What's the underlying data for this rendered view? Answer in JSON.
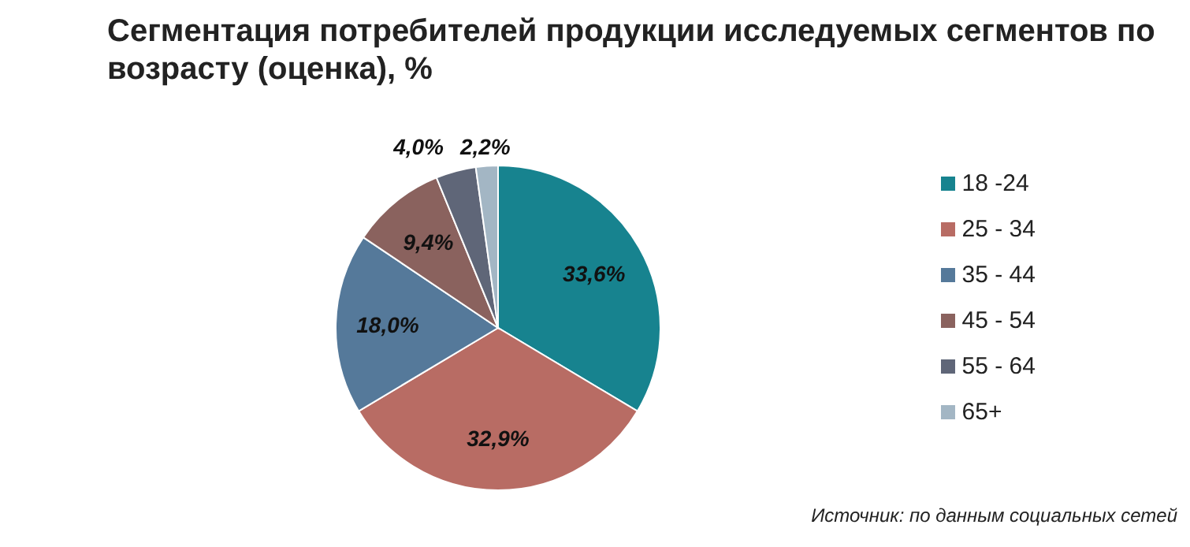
{
  "chart_data": {
    "type": "pie",
    "title": "Сегментация потребителей продукции исследуемых сегментов по возрасту (оценка), %",
    "categories": [
      "18 -24",
      "25 - 34",
      "35 - 44",
      "45 - 54",
      "55 - 64",
      "65+"
    ],
    "values": [
      33.6,
      32.9,
      18.0,
      9.4,
      4.0,
      2.2
    ],
    "value_labels": [
      "33,6%",
      "32,9%",
      "18,0%",
      "9,4%",
      "4,0%",
      "2,2%"
    ],
    "colors": [
      "#17838f",
      "#b86c64",
      "#55799a",
      "#8a625e",
      "#5f6678",
      "#a3b6c4"
    ],
    "legend": "right",
    "annotations": [
      "Источник: по данным социальных сетей"
    ]
  }
}
